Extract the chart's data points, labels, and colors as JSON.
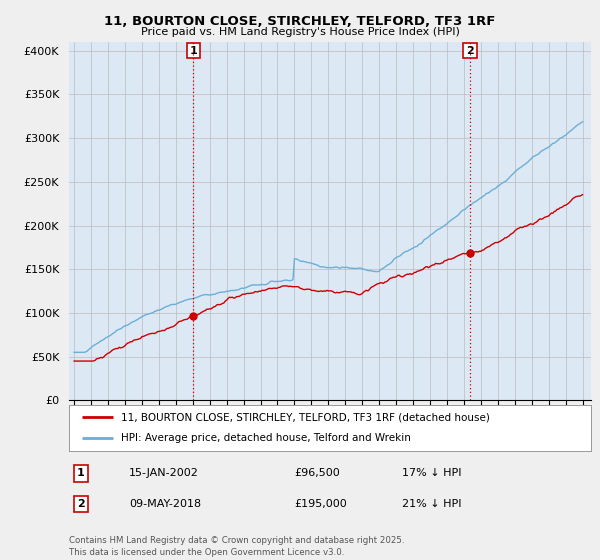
{
  "title_line1": "11, BOURTON CLOSE, STIRCHLEY, TELFORD, TF3 1RF",
  "title_line2": "Price paid vs. HM Land Registry's House Price Index (HPI)",
  "y_ticks": [
    0,
    50000,
    100000,
    150000,
    200000,
    250000,
    300000,
    350000,
    400000
  ],
  "y_tick_labels": [
    "£0",
    "£50K",
    "£100K",
    "£150K",
    "£200K",
    "£250K",
    "£300K",
    "£350K",
    "£400K"
  ],
  "ylim": [
    0,
    410000
  ],
  "marker1_year": 2002.04,
  "marker1_label": "1",
  "marker1_date": "15-JAN-2002",
  "marker1_price": "£96,500",
  "marker1_note": "17% ↓ HPI",
  "marker1_price_val": 96500,
  "marker2_year": 2018.36,
  "marker2_label": "2",
  "marker2_date": "09-MAY-2018",
  "marker2_price": "£195,000",
  "marker2_note": "21% ↓ HPI",
  "marker2_price_val": 195000,
  "hpi_color": "#6baed6",
  "price_color": "#cc0000",
  "legend_label1": "11, BOURTON CLOSE, STIRCHLEY, TELFORD, TF3 1RF (detached house)",
  "legend_label2": "HPI: Average price, detached house, Telford and Wrekin",
  "footer_text": "Contains HM Land Registry data © Crown copyright and database right 2025.\nThis data is licensed under the Open Government Licence v3.0.",
  "background_color": "#efefef",
  "plot_bg_color": "#dce9f5"
}
